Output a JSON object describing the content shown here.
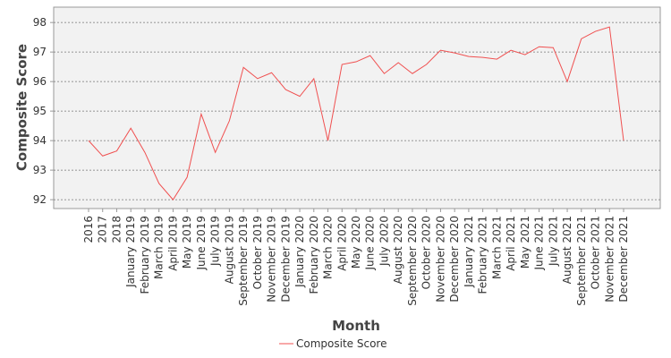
{
  "chart_data": {
    "type": "line",
    "x_label": "Month",
    "y_label": "Composite Score",
    "categories": [
      "2016",
      "2017",
      "2018",
      "January 2019",
      "February 2019",
      "March 2019",
      "April 2019",
      "May 2019",
      "June 2019",
      "July 2019",
      "August 2019",
      "September 2019",
      "October 2019",
      "November 2019",
      "December 2019",
      "January 2020",
      "February 2020",
      "March 2020",
      "April 2020",
      "May 2020",
      "June 2020",
      "July 2020",
      "August 2020",
      "September 2020",
      "October 2020",
      "November 2020",
      "December 2020",
      "January 2021",
      "February 2021",
      "March 2021",
      "April 2021",
      "May 2021",
      "June 2021",
      "July 2021",
      "August 2021",
      "September 2021",
      "October 2021",
      "November 2021",
      "December 2021"
    ],
    "series": [
      {
        "name": "Composite Score",
        "color": "#f05050",
        "values": [
          94.0,
          93.48,
          93.65,
          94.42,
          93.6,
          92.55,
          92.0,
          92.76,
          94.9,
          93.6,
          94.67,
          96.48,
          96.1,
          96.3,
          95.73,
          95.5,
          96.1,
          94.0,
          96.58,
          96.67,
          96.88,
          96.27,
          96.64,
          96.27,
          96.58,
          97.06,
          96.97,
          96.85,
          96.82,
          96.76,
          97.06,
          96.91,
          97.18,
          97.15,
          96.0,
          97.45,
          97.7,
          97.85,
          94.0
        ]
      }
    ],
    "ylim": [
      91.7,
      98.52
    ],
    "yticks": [
      92,
      93,
      94,
      95,
      96,
      97,
      98
    ],
    "grid": true,
    "legend": "bottom"
  }
}
